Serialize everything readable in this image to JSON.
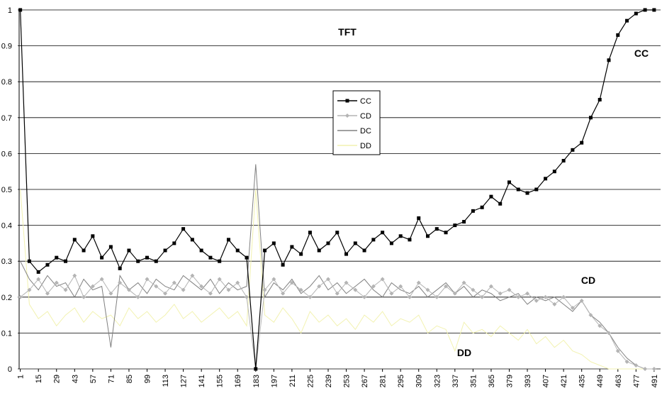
{
  "chart_data": {
    "type": "line",
    "annotations": [
      "TFT",
      "CC",
      "CD",
      "DD"
    ],
    "x": [
      1,
      8,
      15,
      22,
      29,
      36,
      43,
      50,
      57,
      64,
      71,
      78,
      85,
      92,
      99,
      106,
      113,
      120,
      127,
      134,
      141,
      148,
      155,
      162,
      169,
      176,
      183,
      190,
      197,
      204,
      211,
      218,
      225,
      232,
      239,
      246,
      253,
      260,
      267,
      274,
      281,
      288,
      295,
      302,
      309,
      316,
      323,
      330,
      337,
      344,
      351,
      358,
      365,
      372,
      379,
      386,
      393,
      400,
      407,
      414,
      421,
      428,
      435,
      442,
      449,
      456,
      463,
      470,
      477,
      484,
      491
    ],
    "series": [
      {
        "name": "CC",
        "color": "#000000",
        "marker": "square",
        "values": [
          1,
          0.3,
          0.27,
          0.29,
          0.31,
          0.3,
          0.36,
          0.33,
          0.37,
          0.31,
          0.34,
          0.28,
          0.33,
          0.3,
          0.31,
          0.3,
          0.33,
          0.35,
          0.39,
          0.36,
          0.33,
          0.31,
          0.3,
          0.36,
          0.33,
          0.31,
          0,
          0.33,
          0.35,
          0.29,
          0.34,
          0.32,
          0.38,
          0.33,
          0.35,
          0.38,
          0.32,
          0.35,
          0.33,
          0.36,
          0.38,
          0.35,
          0.37,
          0.36,
          0.42,
          0.37,
          0.39,
          0.38,
          0.4,
          0.41,
          0.44,
          0.45,
          0.48,
          0.46,
          0.52,
          0.5,
          0.49,
          0.5,
          0.53,
          0.55,
          0.58,
          0.61,
          0.63,
          0.7,
          0.75,
          0.86,
          0.93,
          0.97,
          0.99,
          1,
          1
        ]
      },
      {
        "name": "CD",
        "color": "#b4b4b4",
        "marker": "diamond",
        "values": [
          0.2,
          0.22,
          0.25,
          0.21,
          0.24,
          0.22,
          0.26,
          0.2,
          0.23,
          0.25,
          0.21,
          0.24,
          0.22,
          0.2,
          0.25,
          0.23,
          0.21,
          0.24,
          0.22,
          0.26,
          0.23,
          0.21,
          0.25,
          0.22,
          0.24,
          0.2,
          0,
          0.22,
          0.25,
          0.21,
          0.24,
          0.22,
          0.2,
          0.23,
          0.25,
          0.21,
          0.24,
          0.22,
          0.2,
          0.23,
          0.25,
          0.21,
          0.23,
          0.2,
          0.24,
          0.22,
          0.2,
          0.23,
          0.21,
          0.24,
          0.22,
          0.2,
          0.23,
          0.21,
          0.22,
          0.2,
          0.21,
          0.19,
          0.2,
          0.18,
          0.2,
          0.17,
          0.19,
          0.15,
          0.12,
          0.1,
          0.05,
          0.02,
          0.01,
          0,
          0
        ]
      },
      {
        "name": "DC",
        "color": "#808080",
        "marker": "none",
        "values": [
          0.3,
          0.25,
          0.22,
          0.26,
          0.23,
          0.24,
          0.2,
          0.25,
          0.22,
          0.23,
          0.06,
          0.26,
          0.22,
          0.24,
          0.21,
          0.25,
          0.23,
          0.22,
          0.26,
          0.24,
          0.22,
          0.25,
          0.21,
          0.24,
          0.22,
          0.23,
          0.57,
          0.2,
          0.24,
          0.22,
          0.25,
          0.21,
          0.23,
          0.26,
          0.22,
          0.24,
          0.21,
          0.23,
          0.25,
          0.22,
          0.2,
          0.24,
          0.22,
          0.21,
          0.23,
          0.2,
          0.22,
          0.24,
          0.21,
          0.23,
          0.2,
          0.22,
          0.21,
          0.19,
          0.2,
          0.21,
          0.18,
          0.2,
          0.19,
          0.2,
          0.18,
          0.16,
          0.19,
          0.15,
          0.13,
          0.1,
          0.06,
          0.03,
          0.01,
          0,
          0
        ]
      },
      {
        "name": "DD",
        "color": "#f2f2b0",
        "marker": "none",
        "values": [
          0.5,
          0.18,
          0.14,
          0.16,
          0.12,
          0.15,
          0.17,
          0.13,
          0.16,
          0.14,
          0.15,
          0.12,
          0.17,
          0.14,
          0.16,
          0.13,
          0.15,
          0.18,
          0.14,
          0.16,
          0.13,
          0.15,
          0.17,
          0.14,
          0.16,
          0.12,
          0.5,
          0.15,
          0.13,
          0.17,
          0.14,
          0.1,
          0.16,
          0.13,
          0.15,
          0.12,
          0.14,
          0.11,
          0.15,
          0.13,
          0.16,
          0.12,
          0.14,
          0.13,
          0.15,
          0.1,
          0.12,
          0.11,
          0.05,
          0.13,
          0.1,
          0.11,
          0.09,
          0.12,
          0.1,
          0.08,
          0.11,
          0.07,
          0.09,
          0.06,
          0.08,
          0.05,
          0.04,
          0.02,
          0.01,
          0,
          0,
          0,
          0,
          0,
          0
        ]
      }
    ],
    "xlim": [
      -1,
      496
    ],
    "ylim": [
      0,
      1
    ],
    "xticks": [
      1,
      15,
      29,
      43,
      57,
      71,
      85,
      99,
      113,
      127,
      141,
      155,
      169,
      183,
      197,
      211,
      225,
      239,
      253,
      267,
      281,
      295,
      309,
      323,
      337,
      351,
      365,
      379,
      393,
      407,
      421,
      435,
      449,
      463,
      477,
      491
    ],
    "yticks": [
      0,
      0.1,
      0.2,
      0.3,
      0.4,
      0.5,
      0.6,
      0.7,
      0.8,
      0.9,
      1
    ],
    "grid": true
  }
}
